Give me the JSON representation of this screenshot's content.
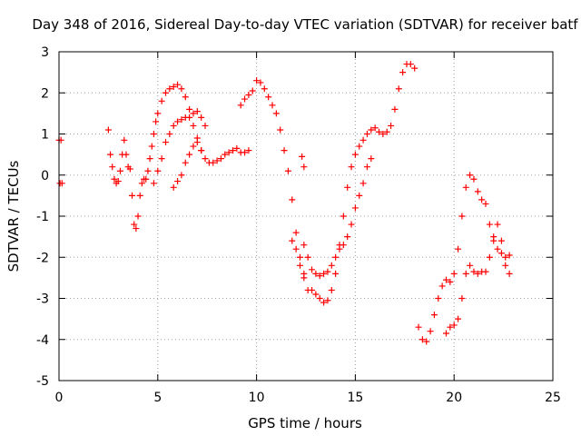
{
  "chart_data": {
    "type": "scatter",
    "title": "Day 348 of 2016, Sidereal Day-to-day VTEC variation (SDTVAR) for receiver batf",
    "xlabel": "GPS time / hours",
    "ylabel": "SDTVAR / TECUs",
    "xlim": [
      0,
      25
    ],
    "ylim": [
      -5,
      3
    ],
    "x_ticks": [
      0,
      5,
      10,
      15,
      20,
      25
    ],
    "y_ticks": [
      -5,
      -4,
      -3,
      -2,
      -1,
      0,
      1,
      2,
      3
    ],
    "x_tick_labels": [
      "0",
      "5",
      "10",
      "15",
      "20",
      "25"
    ],
    "y_tick_labels": [
      "-5",
      "-4",
      "-3",
      "-2",
      "-1",
      "0",
      "1",
      "2",
      "3"
    ],
    "grid": true,
    "marker": "+",
    "marker_color": "#ff0000",
    "series": [
      {
        "x": [
          0.0,
          0.05,
          0.1,
          0.15
        ],
        "y": [
          0.85,
          -0.2,
          0.85,
          -0.2
        ]
      },
      {
        "x": [
          2.5,
          2.6,
          2.7,
          2.8,
          2.9,
          3.0,
          3.1,
          3.2,
          3.3,
          3.4,
          3.5,
          3.6,
          3.7,
          3.8,
          3.9,
          4.0,
          4.1,
          4.2,
          4.3,
          4.4,
          4.5,
          4.6,
          4.7,
          4.8,
          4.9,
          5.0,
          5.2,
          5.4,
          5.6,
          5.8,
          6.0,
          6.2,
          6.4,
          6.6,
          6.8,
          7.0,
          7.2,
          7.4,
          7.6,
          7.8,
          8.0,
          8.2,
          8.4,
          8.6,
          8.8,
          9.0,
          9.2,
          9.4,
          9.6
        ],
        "y": [
          1.1,
          0.5,
          0.2,
          -0.1,
          -0.2,
          -0.15,
          0.1,
          0.5,
          0.85,
          0.5,
          0.2,
          0.15,
          -0.5,
          -1.2,
          -1.3,
          -1.0,
          -0.5,
          -0.2,
          -0.1,
          -0.1,
          0.1,
          0.4,
          0.7,
          1.0,
          1.3,
          1.5,
          1.8,
          2.0,
          2.1,
          2.15,
          2.2,
          2.1,
          1.9,
          1.6,
          1.2,
          0.9,
          0.6,
          0.4,
          0.3,
          0.3,
          0.35,
          0.4,
          0.5,
          0.55,
          0.6,
          0.65,
          0.55,
          0.55,
          0.6
        ]
      },
      {
        "x": [
          4.8,
          5.0,
          5.2,
          5.4,
          5.6,
          5.8,
          6.0,
          6.2,
          6.4,
          6.6,
          6.8,
          7.0,
          7.2,
          7.4
        ],
        "y": [
          -0.2,
          0.1,
          0.4,
          0.8,
          1.0,
          1.2,
          1.3,
          1.35,
          1.4,
          1.4,
          1.5,
          1.55,
          1.4,
          1.2
        ]
      },
      {
        "x": [
          5.8,
          6.0,
          6.2,
          6.4,
          6.6,
          6.8,
          7.0,
          7.2
        ],
        "y": [
          -0.3,
          -0.15,
          0.0,
          0.3,
          0.5,
          0.7,
          0.8,
          0.6
        ]
      },
      {
        "x": [
          9.2,
          9.4,
          9.6,
          9.8,
          10.0,
          10.2,
          10.4,
          10.6,
          10.8,
          11.0,
          11.2,
          11.4,
          11.6,
          11.8,
          12.0,
          12.2,
          12.4,
          12.6,
          12.8,
          13.0,
          13.2,
          13.4,
          13.6,
          13.8,
          14.0,
          14.2,
          14.4,
          14.6,
          14.8,
          15.0,
          15.2,
          15.4,
          15.6,
          15.8,
          16.0,
          16.2,
          16.4,
          16.6,
          16.8,
          17.0,
          17.2,
          17.4,
          17.6,
          17.8,
          18.0
        ],
        "y": [
          1.7,
          1.85,
          1.95,
          2.05,
          2.3,
          2.25,
          2.1,
          1.9,
          1.7,
          1.5,
          1.1,
          0.6,
          0.1,
          -0.6,
          -1.4,
          -2.0,
          -2.5,
          -2.8,
          -2.8,
          -2.9,
          -3.0,
          -3.1,
          -3.05,
          -2.8,
          -2.4,
          -1.7,
          -1.0,
          -0.3,
          0.2,
          0.5,
          0.7,
          0.85,
          1.0,
          1.1,
          1.15,
          1.05,
          1.0,
          1.05,
          1.2,
          1.6,
          2.1,
          2.5,
          2.7,
          2.7,
          2.6
        ]
      },
      {
        "x": [
          12.4,
          12.6,
          12.8,
          13.0,
          13.2,
          13.4,
          13.6,
          13.8,
          14.0,
          14.2,
          14.4,
          14.6,
          14.8,
          15.0,
          15.2,
          15.4,
          15.6,
          15.8
        ],
        "y": [
          -1.7,
          -2.0,
          -2.3,
          -2.4,
          -2.45,
          -2.4,
          -2.35,
          -2.2,
          -2.0,
          -1.8,
          -1.7,
          -1.5,
          -1.2,
          -0.8,
          -0.5,
          -0.2,
          0.2,
          0.4
        ]
      },
      {
        "x": [
          11.8,
          12.0,
          12.2,
          12.4
        ],
        "y": [
          -1.6,
          -1.8,
          -2.2,
          -2.4
        ]
      },
      {
        "x": [
          18.2,
          18.4,
          18.6,
          18.8,
          19.0,
          19.2,
          19.4,
          19.6,
          19.8,
          20.0,
          20.2,
          20.4,
          20.6,
          20.8,
          21.0,
          21.2,
          21.4,
          21.6,
          21.8,
          22.0,
          22.2,
          22.4,
          22.6,
          22.8
        ],
        "y": [
          -3.7,
          -4.0,
          -4.05,
          -3.8,
          -3.4,
          -3.0,
          -2.7,
          -2.55,
          -2.6,
          -2.4,
          -1.8,
          -1.0,
          -0.3,
          0.0,
          -0.1,
          -0.4,
          -0.6,
          -0.7,
          -1.2,
          -1.6,
          -1.8,
          -1.9,
          -2.0,
          -1.95
        ]
      },
      {
        "x": [
          19.6,
          19.8,
          20.0,
          20.2,
          20.4,
          20.6,
          20.8,
          21.0,
          21.2,
          21.4,
          21.6,
          21.8,
          22.0,
          22.2,
          22.4,
          22.6,
          22.8
        ],
        "y": [
          -3.85,
          -3.7,
          -3.65,
          -3.5,
          -3.0,
          -2.4,
          -2.2,
          -2.35,
          -2.4,
          -2.35,
          -2.35,
          -2.0,
          -1.5,
          -1.2,
          -1.6,
          -2.2,
          -2.4
        ]
      },
      {
        "x": [
          12.3,
          12.4
        ],
        "y": [
          0.45,
          0.2
        ]
      }
    ]
  }
}
